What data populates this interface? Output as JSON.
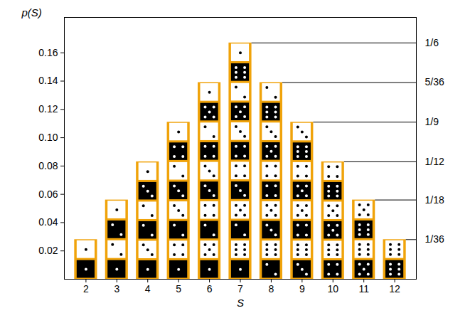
{
  "chart_data": {
    "type": "bar",
    "xlabel": "S",
    "ylabel": "p(S)",
    "x": [
      2,
      3,
      4,
      5,
      6,
      7,
      8,
      9,
      10,
      11,
      12
    ],
    "values": [
      0.028,
      0.056,
      0.083,
      0.111,
      0.139,
      0.167,
      0.139,
      0.111,
      0.083,
      0.056,
      0.028
    ],
    "outcomes": [
      [
        [
          1,
          1
        ]
      ],
      [
        [
          1,
          2
        ],
        [
          2,
          1
        ]
      ],
      [
        [
          1,
          3
        ],
        [
          2,
          2
        ],
        [
          3,
          1
        ]
      ],
      [
        [
          1,
          4
        ],
        [
          2,
          3
        ],
        [
          3,
          2
        ],
        [
          4,
          1
        ]
      ],
      [
        [
          1,
          5
        ],
        [
          2,
          4
        ],
        [
          3,
          3
        ],
        [
          4,
          2
        ],
        [
          5,
          1
        ]
      ],
      [
        [
          1,
          6
        ],
        [
          2,
          5
        ],
        [
          3,
          4
        ],
        [
          4,
          3
        ],
        [
          5,
          2
        ],
        [
          6,
          1
        ]
      ],
      [
        [
          2,
          6
        ],
        [
          3,
          5
        ],
        [
          4,
          4
        ],
        [
          5,
          3
        ],
        [
          6,
          2
        ]
      ],
      [
        [
          3,
          6
        ],
        [
          4,
          5
        ],
        [
          5,
          4
        ],
        [
          6,
          3
        ]
      ],
      [
        [
          4,
          6
        ],
        [
          5,
          5
        ],
        [
          6,
          4
        ]
      ],
      [
        [
          5,
          6
        ],
        [
          6,
          5
        ]
      ],
      [
        [
          6,
          6
        ]
      ]
    ],
    "color": "#f0a30a",
    "xlim": [
      1.3,
      12.7
    ],
    "xticks": [
      2,
      3,
      4,
      5,
      6,
      7,
      8,
      9,
      10,
      11,
      12
    ],
    "ylim": [
      0,
      0.185
    ],
    "yticks": [
      0.02,
      0.04,
      0.06,
      0.08,
      {
        "value": 0.1,
        "label": "0.10"
      },
      0.12,
      0.14,
      0.16
    ],
    "y2ticks": [
      {
        "value": 0.028,
        "label": "1/36"
      },
      {
        "value": 0.056,
        "label": "1/18"
      },
      {
        "value": 0.083,
        "label": "1/12"
      },
      {
        "value": 0.111,
        "label": "1/9"
      },
      {
        "value": 0.139,
        "label": "5/36"
      },
      {
        "value": 0.167,
        "label": "1/6"
      }
    ]
  }
}
